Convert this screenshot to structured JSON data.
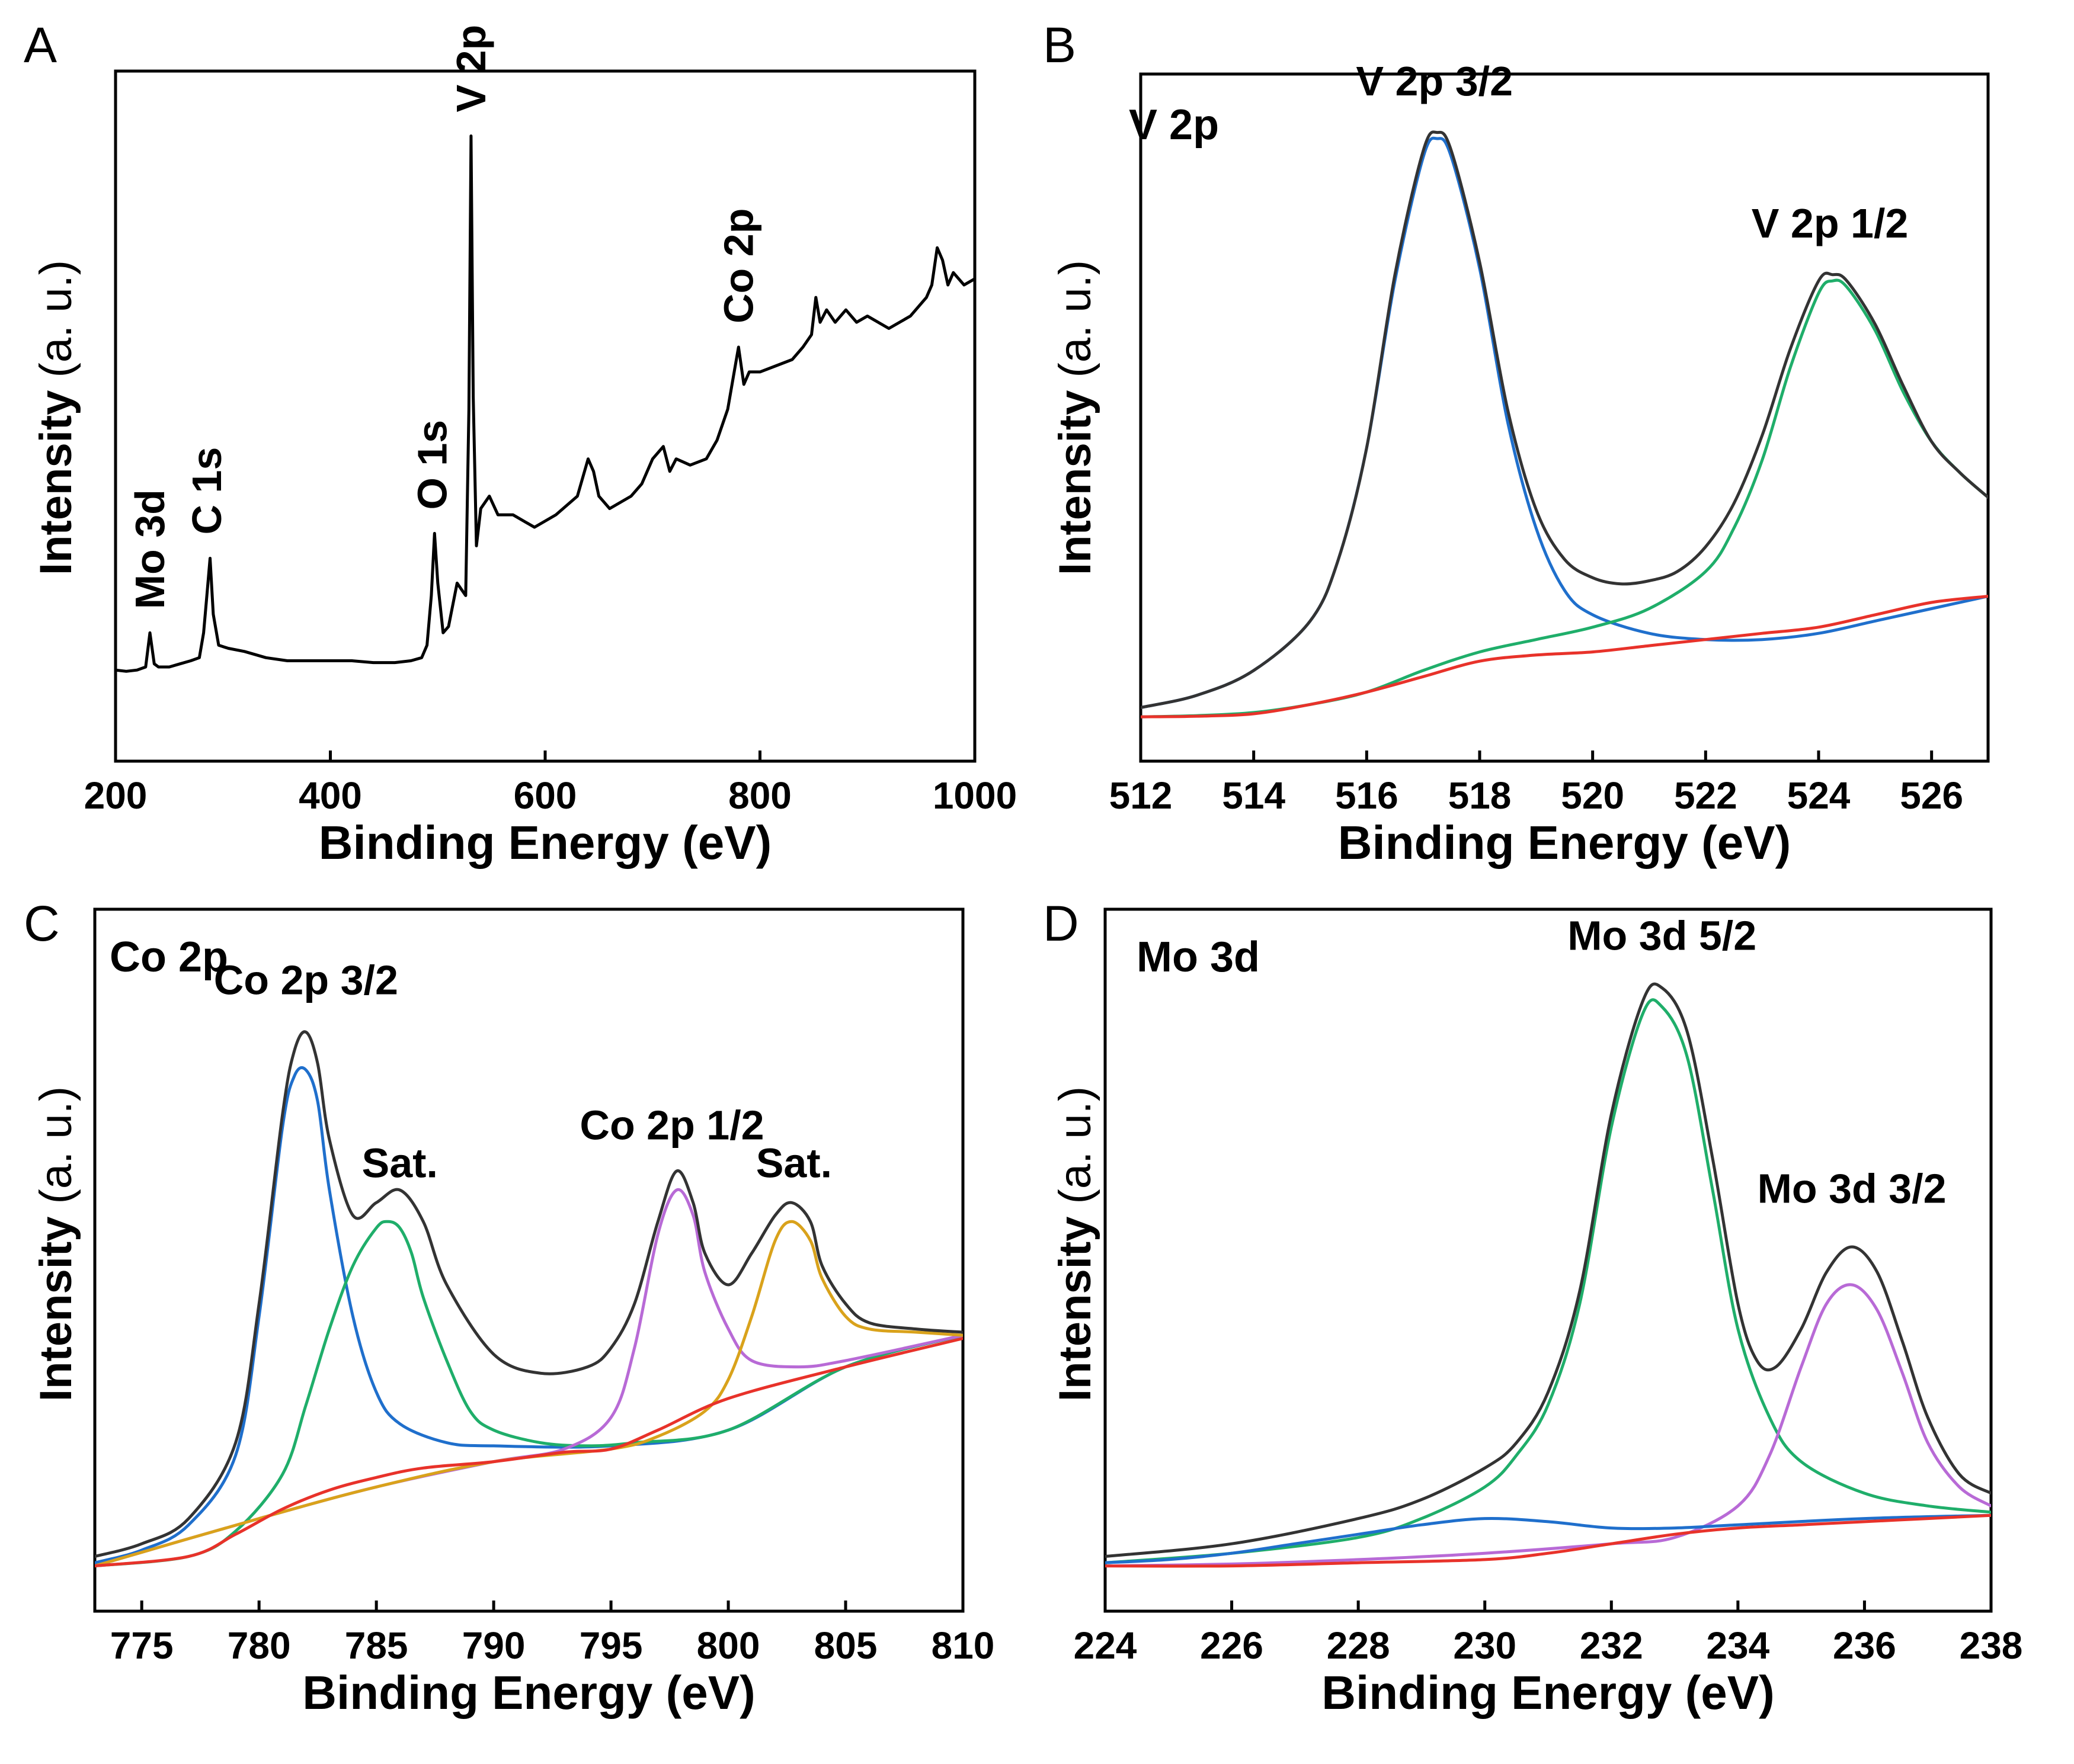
{
  "figure": {
    "panels": [
      "A",
      "B",
      "C",
      "D"
    ]
  },
  "chart_data": [
    {
      "id": "A",
      "type": "line",
      "panel_label": "A",
      "title": "",
      "xlabel": "Binding Energy (eV)",
      "ylabel": "Intensity",
      "ylabel_unit": "(a. u.)",
      "xlim": [
        200,
        1000
      ],
      "ylim": [
        0,
        100
      ],
      "xticks": [
        200,
        400,
        600,
        800,
        1000
      ],
      "colors": {
        "survey": "#000000"
      },
      "series": [
        {
          "name": "survey",
          "x": [
            200,
            210,
            220,
            228,
            232,
            236,
            240,
            250,
            260,
            270,
            278,
            282,
            285,
            288,
            291,
            296,
            305,
            320,
            340,
            360,
            380,
            400,
            420,
            440,
            460,
            475,
            485,
            490,
            494,
            497,
            500,
            505,
            510,
            518,
            522,
            526,
            529,
            531,
            533,
            536,
            540,
            548,
            556,
            562,
            570,
            590,
            610,
            630,
            640,
            645,
            650,
            660,
            670,
            680,
            690,
            700,
            710,
            716,
            722,
            735,
            750,
            760,
            770,
            776,
            780,
            785,
            790,
            800,
            815,
            830,
            840,
            848,
            852,
            856,
            862,
            870,
            880,
            890,
            900,
            920,
            940,
            955,
            960,
            965,
            970,
            975,
            980,
            990,
            1000
          ],
          "y": [
            8,
            7.8,
            8,
            8.5,
            14,
            9,
            8.5,
            8.5,
            9,
            9.5,
            10,
            14,
            20,
            26,
            17,
            12,
            11.5,
            11,
            10,
            9.5,
            9.5,
            9.5,
            9.5,
            9.2,
            9.2,
            9.5,
            10,
            12,
            20,
            30,
            22,
            14,
            15,
            22,
            21,
            20,
            50,
            94,
            52,
            28,
            34,
            36,
            33,
            33,
            33,
            31,
            33,
            36,
            42,
            40,
            36,
            34,
            35,
            36,
            38,
            42,
            44,
            40,
            42,
            41,
            42,
            45,
            50,
            56,
            60,
            54,
            56,
            56,
            57,
            58,
            60,
            62,
            68,
            64,
            66,
            64,
            66,
            64,
            65,
            63,
            65,
            68,
            70,
            76,
            74,
            70,
            72,
            70,
            71
          ]
        }
      ],
      "annotations": [
        {
          "text": "Mo 3d",
          "x": 232,
          "orientation": "vertical"
        },
        {
          "text": "C 1s",
          "x": 285,
          "orientation": "vertical"
        },
        {
          "text": "O 1s",
          "x": 495,
          "orientation": "vertical"
        },
        {
          "text": "V 2p",
          "x": 531,
          "orientation": "vertical"
        },
        {
          "text": "Co 2p",
          "x": 780,
          "orientation": "vertical"
        }
      ]
    },
    {
      "id": "B",
      "type": "line",
      "panel_label": "B",
      "title": "V 2p",
      "xlabel": "Binding Energy (eV)",
      "ylabel": "Intensity",
      "ylabel_unit": "(a. u.)",
      "xlim": [
        512,
        527
      ],
      "ylim": [
        0,
        100
      ],
      "xticks": [
        512,
        514,
        516,
        518,
        520,
        522,
        524,
        526
      ],
      "colors": {
        "envelope": "#333333",
        "V 2p 3/2": "#1f6fcc",
        "V 2p 1/2": "#1fae6a",
        "background": "#e8322a"
      },
      "series": [
        {
          "name": "envelope",
          "color_key": "envelope",
          "x": [
            512,
            513,
            514,
            515,
            515.5,
            516,
            516.5,
            517,
            517.25,
            517.5,
            518,
            518.5,
            519,
            519.5,
            520,
            520.5,
            521,
            521.5,
            522,
            522.5,
            523,
            523.5,
            524,
            524.25,
            524.5,
            525,
            525.5,
            526,
            526.5,
            527
          ],
          "y": [
            2,
            4,
            8,
            16,
            26,
            44,
            72,
            92,
            95,
            92,
            74,
            50,
            34,
            26,
            23,
            22,
            22.5,
            24,
            28,
            35,
            46,
            60,
            71,
            72,
            71,
            64,
            54,
            45,
            40,
            36
          ]
        },
        {
          "name": "V 2p 3/2",
          "color_key": "V 2p 3/2",
          "x": [
            512,
            513,
            514,
            515,
            515.5,
            516,
            516.5,
            517,
            517.25,
            517.5,
            518,
            518.5,
            519,
            519.5,
            520,
            521,
            522,
            523,
            524,
            525,
            526,
            527
          ],
          "y": [
            2,
            4,
            8,
            16,
            26,
            44,
            71,
            91,
            94,
            91,
            73,
            48,
            31,
            21,
            17,
            14,
            13,
            13,
            14,
            16,
            18,
            20
          ]
        },
        {
          "name": "V 2p 1/2",
          "color_key": "V 2p 1/2",
          "x": [
            512,
            513,
            514,
            515,
            516,
            517,
            518,
            519,
            520,
            521,
            522,
            522.5,
            523,
            523.5,
            524,
            524.25,
            524.5,
            525,
            525.5,
            526,
            526.5,
            527
          ],
          "y": [
            0.5,
            0.7,
            1.2,
            2.5,
            4.5,
            8,
            11,
            13,
            15,
            18,
            24,
            31,
            42,
            57,
            69,
            71,
            70,
            63,
            53,
            45,
            40,
            36
          ]
        },
        {
          "name": "background",
          "color_key": "background",
          "x": [
            512,
            513,
            514,
            515,
            516,
            517,
            518,
            519,
            520,
            521,
            522,
            523,
            524,
            525,
            526,
            527
          ],
          "y": [
            0.5,
            0.6,
            1,
            2.5,
            4.5,
            7,
            9.5,
            10.5,
            11,
            12,
            13,
            14,
            15,
            17,
            19,
            20
          ]
        }
      ],
      "annotations": [
        {
          "text": "V 2p 3/2",
          "x": 517.2,
          "y": 101
        },
        {
          "text": "V 2p 1/2",
          "x": 524.2,
          "y": 78
        }
      ]
    },
    {
      "id": "C",
      "type": "line",
      "panel_label": "C",
      "title": "Co 2p",
      "xlabel": "Binding Energy (eV)",
      "ylabel": "Intensity",
      "ylabel_unit": "(a. u.)",
      "xlim": [
        773,
        810
      ],
      "ylim": [
        0,
        100
      ],
      "xticks": [
        775,
        780,
        785,
        790,
        795,
        800,
        805,
        810
      ],
      "colors": {
        "envelope": "#333333",
        "Co 2p 3/2": "#1f6fcc",
        "Sat. 1": "#1fae6a",
        "Co 2p 1/2": "#b86ad6",
        "Sat. 2": "#d9a21b",
        "background": "#e8322a"
      },
      "series": [
        {
          "name": "envelope",
          "color_key": "envelope",
          "x": [
            773,
            775,
            777,
            779,
            780,
            781,
            781.5,
            782,
            782.5,
            783,
            784,
            785,
            786,
            787,
            788,
            790,
            792,
            794,
            795,
            796,
            797,
            797.8,
            798.5,
            799,
            800,
            801,
            802,
            802.7,
            803.5,
            804,
            805,
            806,
            808,
            810
          ],
          "y": [
            2,
            4,
            8,
            20,
            42,
            72,
            82,
            85,
            80,
            68,
            56,
            58,
            60,
            55,
            45,
            34,
            31,
            32,
            35,
            42,
            55,
            63,
            58,
            50,
            45,
            50,
            56,
            58,
            55,
            48,
            42,
            39,
            38,
            37.5
          ]
        },
        {
          "name": "Co 2p 3/2",
          "color_key": "Co 2p 3/2",
          "x": [
            773,
            775,
            777,
            779,
            780,
            781,
            781.5,
            782,
            782.5,
            783,
            784,
            785,
            786,
            788,
            790,
            795,
            800,
            805,
            810
          ],
          "y": [
            1,
            3,
            7,
            18,
            40,
            70,
            78,
            79,
            74,
            60,
            40,
            28,
            23,
            20,
            19.5,
            19.5,
            22,
            32,
            37
          ]
        },
        {
          "name": "Sat. 1",
          "color_key": "Sat. 1",
          "x": [
            773,
            777,
            779,
            781,
            782,
            783,
            784,
            785,
            785.5,
            786,
            786.5,
            787,
            788,
            789,
            790,
            792,
            794,
            796,
            800,
            805,
            810
          ],
          "y": [
            0.5,
            2,
            6,
            15,
            26,
            38,
            48,
            54,
            55,
            54,
            50,
            43,
            33,
            25,
            22,
            20,
            19.5,
            20,
            22,
            32,
            37
          ]
        },
        {
          "name": "Co 2p 1/2",
          "color_key": "Co 2p 1/2",
          "x": [
            773,
            780,
            785,
            790,
            793,
            795,
            796,
            797,
            797.8,
            798.5,
            799,
            800,
            801,
            803,
            805,
            810
          ],
          "y": [
            0.5,
            8,
            13,
            17,
            19,
            24,
            35,
            53,
            60,
            56,
            47,
            38,
            33,
            32,
            33,
            37
          ]
        },
        {
          "name": "Sat. 2",
          "color_key": "Sat. 2",
          "x": [
            773,
            780,
            785,
            790,
            795,
            797,
            799,
            800,
            801,
            802,
            802.7,
            803.5,
            804,
            805,
            806,
            808,
            810
          ],
          "y": [
            0.5,
            8,
            13,
            17,
            19,
            21,
            25,
            30,
            40,
            52,
            55,
            52,
            46,
            40,
            38,
            37.5,
            37
          ]
        },
        {
          "name": "background",
          "color_key": "background",
          "x": [
            773,
            777,
            779,
            781,
            783,
            785,
            787,
            790,
            793,
            795,
            797,
            800,
            805,
            810
          ],
          "y": [
            0.5,
            2,
            5.5,
            9.5,
            12.5,
            14.5,
            16,
            17,
            18.5,
            19,
            22,
            27,
            32,
            36.5
          ]
        }
      ],
      "annotations": [
        {
          "text": "Co 2p 3/2",
          "x": 782,
          "y": 91
        },
        {
          "text": "Sat.",
          "x": 786,
          "y": 62
        },
        {
          "text": "Co 2p 1/2",
          "x": 797.6,
          "y": 68
        },
        {
          "text": "Sat.",
          "x": 802.8,
          "y": 62
        }
      ]
    },
    {
      "id": "D",
      "type": "line",
      "panel_label": "D",
      "title": "Mo 3d",
      "xlabel": "Binding Energy (eV)",
      "ylabel": "Intensity",
      "ylabel_unit": "(a. u.)",
      "xlim": [
        224,
        238
      ],
      "ylim": [
        0,
        100
      ],
      "xticks": [
        224,
        226,
        228,
        230,
        232,
        234,
        236,
        238
      ],
      "colors": {
        "envelope": "#333333",
        "Mo 3d 5/2": "#1fae6a",
        "Mo 3d 3/2": "#b86ad6",
        "baseline": "#1f6fcc",
        "background": "#e8322a"
      },
      "series": [
        {
          "name": "envelope",
          "color_key": "envelope",
          "x": [
            224,
            226,
            228,
            229,
            230,
            230.5,
            231,
            231.5,
            232,
            232.5,
            232.8,
            233.2,
            233.6,
            234,
            234.3,
            234.6,
            235,
            235.4,
            235.8,
            236.2,
            236.6,
            237,
            237.5,
            238
          ],
          "y": [
            2,
            4,
            8,
            11,
            16,
            20,
            28,
            44,
            72,
            90,
            92,
            85,
            65,
            42,
            33,
            32,
            38,
            47,
            51,
            47,
            36,
            24,
            15,
            12
          ]
        },
        {
          "name": "Mo 3d 5/2",
          "color_key": "Mo 3d 5/2",
          "x": [
            224,
            226,
            228,
            229,
            230,
            230.5,
            231,
            231.5,
            232,
            232.5,
            232.8,
            233.2,
            233.6,
            234,
            234.5,
            235,
            236,
            237,
            238
          ],
          "y": [
            1,
            2.5,
            5,
            8,
            13,
            18,
            26,
            42,
            70,
            88,
            89,
            81,
            60,
            38,
            24,
            17,
            12,
            10,
            9
          ]
        },
        {
          "name": "Mo 3d 3/2",
          "color_key": "Mo 3d 3/2",
          "x": [
            224,
            226,
            228,
            230,
            232,
            233,
            234,
            234.5,
            235,
            235.4,
            235.8,
            236.2,
            236.6,
            237,
            237.5,
            238
          ],
          "y": [
            0.5,
            0.8,
            1.5,
            2.5,
            4,
            5,
            10,
            18,
            32,
            42,
            45,
            41,
            31,
            20,
            13,
            10
          ]
        },
        {
          "name": "baseline",
          "color_key": "baseline",
          "x": [
            224,
            225,
            226,
            227,
            228,
            229,
            230,
            231,
            232,
            233,
            234,
            236,
            238
          ],
          "y": [
            1,
            1.5,
            2.5,
            4,
            5.5,
            7,
            8,
            7.5,
            6.5,
            6.5,
            7,
            8,
            8.5
          ]
        },
        {
          "name": "background",
          "color_key": "background",
          "x": [
            224,
            226,
            228,
            230,
            231,
            232,
            233,
            234,
            235,
            236,
            237,
            238
          ],
          "y": [
            0.5,
            0.5,
            1,
            1.5,
            2.5,
            4,
            5.5,
            6.5,
            7,
            7.5,
            8,
            8.5
          ]
        }
      ],
      "annotations": [
        {
          "text": "Mo 3d 5/2",
          "x": 232.8,
          "y": 98
        },
        {
          "text": "Mo 3d 3/2",
          "x": 235.8,
          "y": 58
        }
      ]
    }
  ]
}
